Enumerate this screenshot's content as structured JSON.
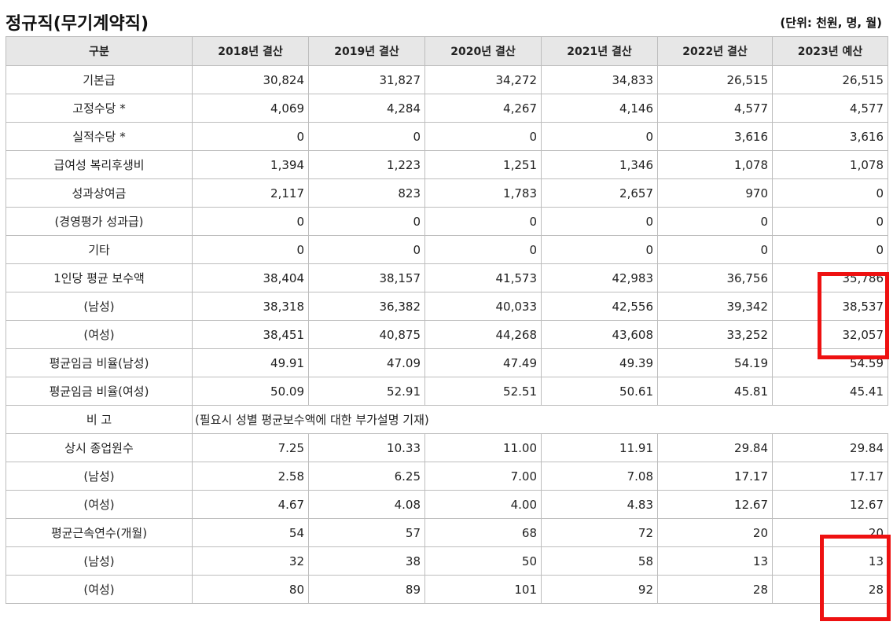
{
  "header": {
    "title": "정규직(무기계약직)",
    "unit": "(단위: 천원, 명, 월)"
  },
  "table": {
    "columns": [
      "구분",
      "2018년 결산",
      "2019년 결산",
      "2020년 결산",
      "2021년 결산",
      "2022년 결산",
      "2023년 예산"
    ],
    "rows": [
      {
        "label": "기본급",
        "values": [
          "30,824",
          "31,827",
          "34,272",
          "34,833",
          "26,515",
          "26,515"
        ]
      },
      {
        "label": "고정수당 *",
        "values": [
          "4,069",
          "4,284",
          "4,267",
          "4,146",
          "4,577",
          "4,577"
        ]
      },
      {
        "label": "실적수당 *",
        "values": [
          "0",
          "0",
          "0",
          "0",
          "3,616",
          "3,616"
        ]
      },
      {
        "label": "급여성 복리후생비",
        "values": [
          "1,394",
          "1,223",
          "1,251",
          "1,346",
          "1,078",
          "1,078"
        ]
      },
      {
        "label": "성과상여금",
        "values": [
          "2,117",
          "823",
          "1,783",
          "2,657",
          "970",
          "0"
        ]
      },
      {
        "label": "(경영평가 성과급)",
        "values": [
          "0",
          "0",
          "0",
          "0",
          "0",
          "0"
        ]
      },
      {
        "label": "기타",
        "values": [
          "0",
          "0",
          "0",
          "0",
          "0",
          "0"
        ]
      },
      {
        "label": "1인당 평균 보수액",
        "values": [
          "38,404",
          "38,157",
          "41,573",
          "42,983",
          "36,756",
          "35,786"
        ]
      },
      {
        "label": "(남성)",
        "values": [
          "38,318",
          "36,382",
          "40,033",
          "42,556",
          "39,342",
          "38,537"
        ]
      },
      {
        "label": "(여성)",
        "values": [
          "38,451",
          "40,875",
          "44,268",
          "43,608",
          "33,252",
          "32,057"
        ]
      },
      {
        "label": "평균임금 비율(남성)",
        "values": [
          "49.91",
          "47.09",
          "47.49",
          "49.39",
          "54.19",
          "54.59"
        ]
      },
      {
        "label": "평균임금 비율(여성)",
        "values": [
          "50.09",
          "52.91",
          "52.51",
          "50.61",
          "45.81",
          "45.41"
        ]
      },
      {
        "label": "비 고",
        "note": "(필요시 성별 평균보수액에 대한 부가설명 기재)"
      },
      {
        "label": "상시 종업원수",
        "values": [
          "7.25",
          "10.33",
          "11.00",
          "11.91",
          "29.84",
          "29.84"
        ]
      },
      {
        "label": "(남성)",
        "values": [
          "2.58",
          "6.25",
          "7.00",
          "7.08",
          "17.17",
          "17.17"
        ]
      },
      {
        "label": "(여성)",
        "values": [
          "4.67",
          "4.08",
          "4.00",
          "4.83",
          "12.67",
          "12.67"
        ]
      },
      {
        "label": "평균근속연수(개월)",
        "values": [
          "54",
          "57",
          "68",
          "72",
          "20",
          "20"
        ]
      },
      {
        "label": "(남성)",
        "values": [
          "32",
          "38",
          "50",
          "58",
          "13",
          "13"
        ]
      },
      {
        "label": "(여성)",
        "values": [
          "80",
          "89",
          "101",
          "92",
          "28",
          "28"
        ]
      }
    ]
  },
  "highlight_color": "#ee1111"
}
